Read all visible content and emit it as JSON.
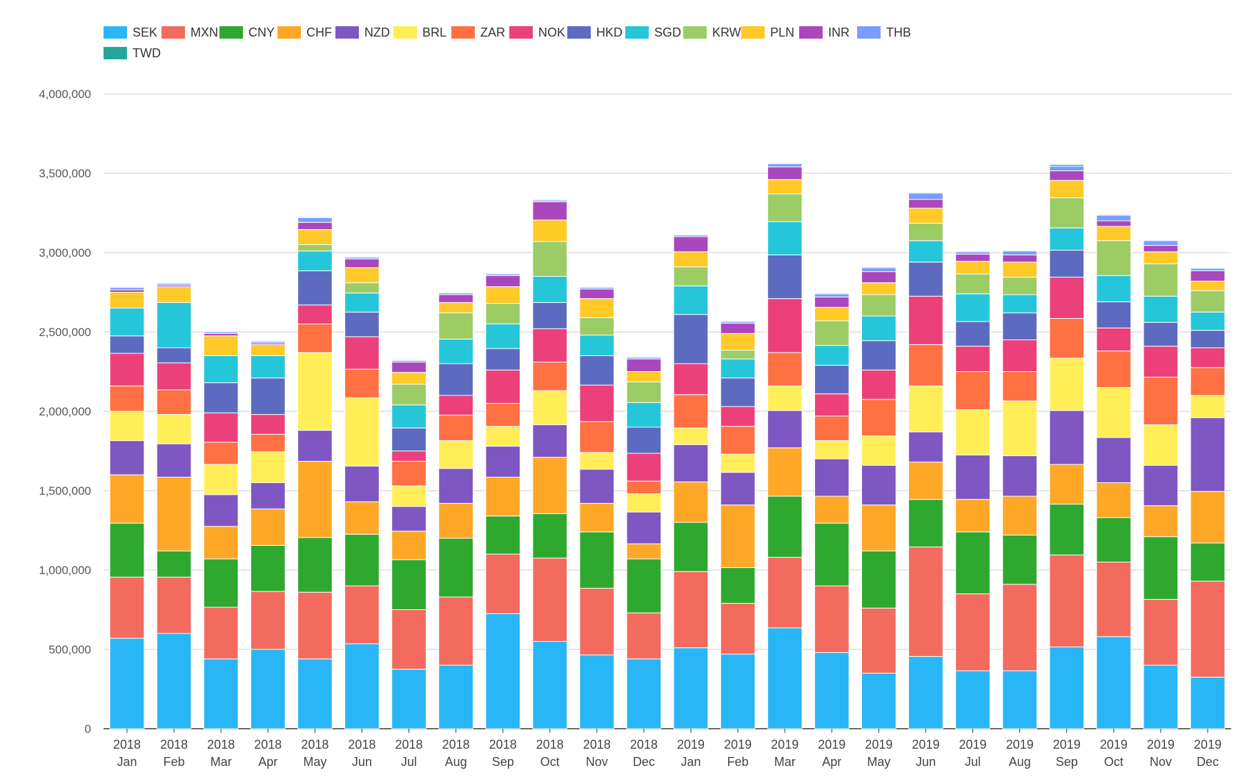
{
  "chart_data": {
    "type": "bar",
    "stacked": true,
    "categories": [
      [
        "2018",
        "Jan"
      ],
      [
        "2018",
        "Feb"
      ],
      [
        "2018",
        "Mar"
      ],
      [
        "2018",
        "Apr"
      ],
      [
        "2018",
        "May"
      ],
      [
        "2018",
        "Jun"
      ],
      [
        "2018",
        "Jul"
      ],
      [
        "2018",
        "Aug"
      ],
      [
        "2018",
        "Sep"
      ],
      [
        "2018",
        "Oct"
      ],
      [
        "2018",
        "Nov"
      ],
      [
        "2018",
        "Dec"
      ],
      [
        "2019",
        "Jan"
      ],
      [
        "2019",
        "Feb"
      ],
      [
        "2019",
        "Mar"
      ],
      [
        "2019",
        "Apr"
      ],
      [
        "2019",
        "May"
      ],
      [
        "2019",
        "Jun"
      ],
      [
        "2019",
        "Jul"
      ],
      [
        "2019",
        "Aug"
      ],
      [
        "2019",
        "Sep"
      ],
      [
        "2019",
        "Oct"
      ],
      [
        "2019",
        "Nov"
      ],
      [
        "2019",
        "Dec"
      ]
    ],
    "ylim": [
      0,
      4000000
    ],
    "yticks": [
      0,
      500000,
      1000000,
      1500000,
      2000000,
      2500000,
      3000000,
      3500000,
      4000000
    ],
    "ytick_labels": [
      "0",
      "500,000",
      "1,000,000",
      "1,500,000",
      "2,000,000",
      "2,500,000",
      "3,000,000",
      "3,500,000",
      "4,000,000"
    ],
    "grid": true,
    "legend_position": "top",
    "series": [
      {
        "name": "SEK",
        "color": "#29b6f6",
        "values": [
          570000,
          600000,
          440000,
          500000,
          440000,
          535000,
          375000,
          400000,
          725000,
          550000,
          465000,
          440000,
          510000,
          470000,
          635000,
          480000,
          350000,
          455000,
          365000,
          365000,
          515000,
          580000,
          400000,
          325000
        ]
      },
      {
        "name": "MXN",
        "color": "#f26b5e",
        "values": [
          385000,
          355000,
          325000,
          365000,
          420000,
          365000,
          375000,
          430000,
          375000,
          525000,
          420000,
          290000,
          480000,
          320000,
          445000,
          420000,
          410000,
          690000,
          485000,
          545000,
          580000,
          470000,
          415000,
          605000
        ]
      },
      {
        "name": "CNY",
        "color": "#2ea82e",
        "values": [
          340000,
          165000,
          305000,
          290000,
          345000,
          325000,
          315000,
          370000,
          240000,
          280000,
          355000,
          340000,
          310000,
          225000,
          385000,
          395000,
          360000,
          300000,
          390000,
          310000,
          320000,
          280000,
          395000,
          240000
        ]
      },
      {
        "name": "CHF",
        "color": "#ffa726",
        "values": [
          305000,
          465000,
          205000,
          230000,
          480000,
          205000,
          180000,
          220000,
          245000,
          355000,
          180000,
          95000,
          255000,
          395000,
          305000,
          170000,
          290000,
          235000,
          205000,
          245000,
          250000,
          220000,
          195000,
          325000
        ]
      },
      {
        "name": "NZD",
        "color": "#7e57c2",
        "values": [
          215000,
          210000,
          200000,
          165000,
          195000,
          225000,
          155000,
          220000,
          195000,
          205000,
          215000,
          200000,
          235000,
          205000,
          235000,
          235000,
          250000,
          190000,
          280000,
          255000,
          340000,
          285000,
          255000,
          465000
        ]
      },
      {
        "name": "BRL",
        "color": "#ffee58",
        "values": [
          185000,
          185000,
          190000,
          195000,
          490000,
          430000,
          130000,
          175000,
          125000,
          215000,
          105000,
          115000,
          105000,
          115000,
          155000,
          115000,
          185000,
          290000,
          285000,
          345000,
          330000,
          315000,
          255000,
          140000
        ]
      },
      {
        "name": "ZAR",
        "color": "#ff7043",
        "values": [
          160000,
          155000,
          140000,
          110000,
          180000,
          180000,
          155000,
          160000,
          145000,
          180000,
          195000,
          80000,
          210000,
          175000,
          210000,
          155000,
          230000,
          260000,
          240000,
          185000,
          250000,
          230000,
          300000,
          175000
        ]
      },
      {
        "name": "NOK",
        "color": "#ec407a",
        "values": [
          205000,
          170000,
          185000,
          125000,
          120000,
          205000,
          65000,
          125000,
          210000,
          210000,
          230000,
          175000,
          195000,
          125000,
          340000,
          140000,
          185000,
          305000,
          160000,
          200000,
          260000,
          145000,
          195000,
          125000
        ]
      },
      {
        "name": "HKD",
        "color": "#5c6bc0",
        "values": [
          110000,
          95000,
          190000,
          230000,
          215000,
          155000,
          145000,
          200000,
          135000,
          165000,
          185000,
          165000,
          310000,
          180000,
          275000,
          180000,
          185000,
          215000,
          155000,
          170000,
          170000,
          165000,
          150000,
          110000
        ]
      },
      {
        "name": "SGD",
        "color": "#26c6da",
        "values": [
          175000,
          285000,
          170000,
          140000,
          125000,
          120000,
          145000,
          155000,
          155000,
          165000,
          130000,
          155000,
          180000,
          120000,
          210000,
          125000,
          155000,
          135000,
          175000,
          115000,
          140000,
          165000,
          165000,
          115000
        ]
      },
      {
        "name": "KRW",
        "color": "#9ccc65",
        "values": [
          0,
          0,
          0,
          0,
          40000,
          65000,
          130000,
          165000,
          130000,
          220000,
          110000,
          130000,
          120000,
          55000,
          175000,
          155000,
          135000,
          110000,
          125000,
          110000,
          190000,
          220000,
          205000,
          135000
        ]
      },
      {
        "name": "PLN",
        "color": "#ffca28",
        "values": [
          100000,
          100000,
          125000,
          70000,
          95000,
          95000,
          75000,
          65000,
          105000,
          135000,
          120000,
          65000,
          95000,
          105000,
          90000,
          85000,
          75000,
          95000,
          80000,
          95000,
          110000,
          90000,
          75000,
          60000
        ]
      },
      {
        "name": "INR",
        "color": "#ab47bc",
        "values": [
          15000,
          10000,
          15000,
          10000,
          45000,
          55000,
          65000,
          50000,
          70000,
          115000,
          60000,
          80000,
          95000,
          65000,
          80000,
          65000,
          70000,
          55000,
          45000,
          45000,
          60000,
          35000,
          40000,
          65000
        ]
      },
      {
        "name": "THB",
        "color": "#7b9cff",
        "values": [
          15000,
          10000,
          10000,
          10000,
          30000,
          10000,
          10000,
          10000,
          10000,
          10000,
          10000,
          10000,
          10000,
          10000,
          20000,
          20000,
          25000,
          40000,
          15000,
          25000,
          30000,
          35000,
          30000,
          15000
        ]
      },
      {
        "name": "TWD",
        "color": "#26a69a",
        "values": [
          5000,
          5000,
          5000,
          5000,
          5000,
          5000,
          5000,
          5000,
          5000,
          5000,
          5000,
          5000,
          5000,
          5000,
          5000,
          5000,
          5000,
          5000,
          5000,
          5000,
          10000,
          5000,
          5000,
          5000
        ]
      }
    ]
  }
}
